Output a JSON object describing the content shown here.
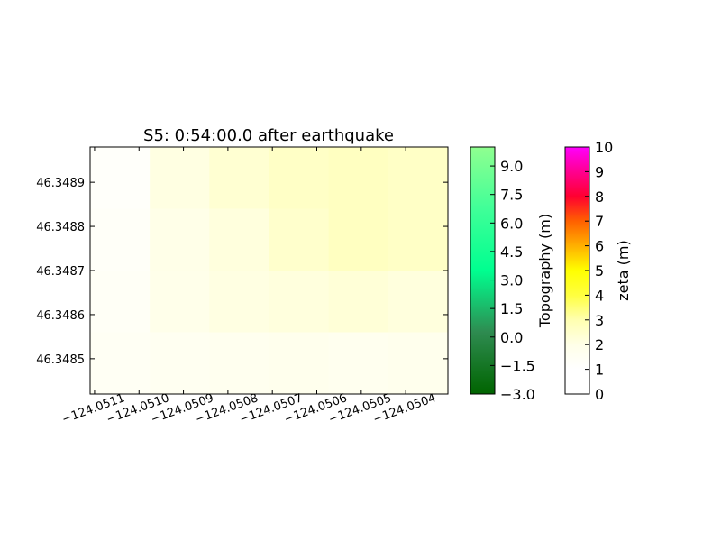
{
  "chart_data": {
    "type": "heatmap",
    "title": "S5: 0:54:00.0 after earthquake",
    "xlim": [
      -124.05111,
      -124.050305
    ],
    "xticks": [
      {
        "value": -124.0511,
        "label": "−124.0511"
      },
      {
        "value": -124.051,
        "label": "−124.0510"
      },
      {
        "value": -124.0509,
        "label": "−124.0509"
      },
      {
        "value": -124.0508,
        "label": "−124.0508"
      },
      {
        "value": -124.0507,
        "label": "−124.0507"
      },
      {
        "value": -124.0506,
        "label": "−124.0506"
      },
      {
        "value": -124.0505,
        "label": "−124.0505"
      },
      {
        "value": -124.0504,
        "label": "−124.0504"
      }
    ],
    "ylim": [
      46.34842,
      46.34898
    ],
    "yticks": [
      46.3485,
      46.3486,
      46.3487,
      46.3488,
      46.3489
    ],
    "field": {
      "values": [
        [
          1.2,
          2.1,
          2.4,
          2.6,
          2.7,
          2.6
        ],
        [
          1.3,
          2.0,
          2.2,
          2.5,
          2.7,
          2.6
        ],
        [
          1.4,
          1.9,
          2.1,
          2.2,
          2.3,
          2.2
        ],
        [
          1.5,
          1.6,
          1.7,
          1.8,
          1.7,
          1.8
        ]
      ]
    },
    "colorbars": [
      {
        "label": "Topography (m)",
        "lim": [
          -3,
          10
        ],
        "ticks": [
          {
            "value": -3,
            "label": "−3.0"
          },
          {
            "value": -1.5,
            "label": "−1.5"
          },
          {
            "value": 0,
            "label": "0.0"
          },
          {
            "value": 1.5,
            "label": "1.5"
          },
          {
            "value": 3,
            "label": "3.0"
          },
          {
            "value": 4.5,
            "label": "4.5"
          },
          {
            "value": 6,
            "label": "6.0"
          },
          {
            "value": 7.5,
            "label": "7.5"
          },
          {
            "value": 9,
            "label": "9.0"
          }
        ],
        "colors": [
          "#006400",
          "#2e8b50",
          "#00ff90",
          "#40ff98",
          "#90ff90"
        ]
      },
      {
        "label": "zeta (m)",
        "lim": [
          0,
          10
        ],
        "ticks": [
          0,
          1,
          2,
          3,
          4,
          5,
          6,
          7,
          8,
          9,
          10
        ],
        "colors": [
          "#ffffff",
          "#ffffff",
          "#ffffe8",
          "#ffffb0",
          "#ffff40",
          "#ffff00",
          "#ffb000",
          "#ff6000",
          "#ff0030",
          "#ff0090",
          "#ff00ff"
        ]
      }
    ]
  }
}
